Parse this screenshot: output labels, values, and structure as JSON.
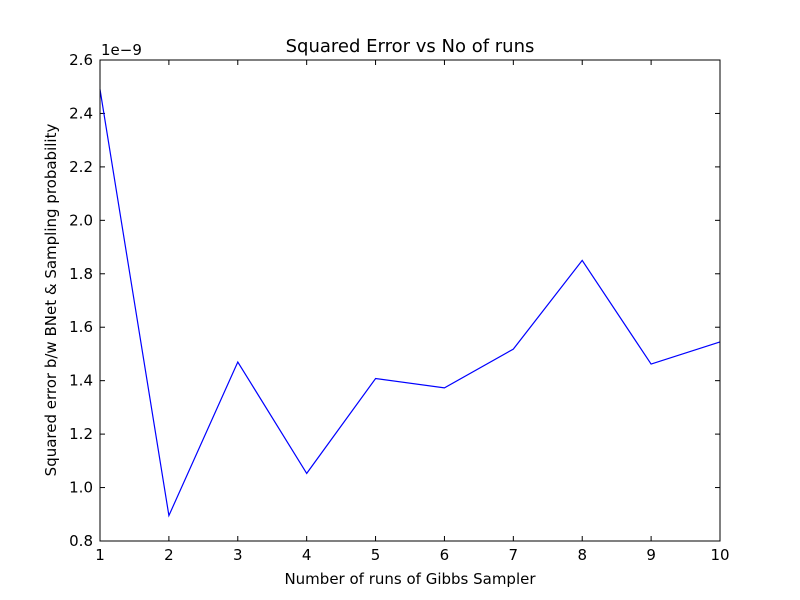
{
  "chart_data": {
    "type": "line",
    "title": "Squared Error vs No of runs",
    "xlabel": "Number of runs of Gibbs Sampler",
    "ylabel": "Squared error b/w BNet & Sampling probability",
    "y_offset_label": "1e−9",
    "xlim": [
      1,
      10
    ],
    "ylim": [
      0.8,
      2.6
    ],
    "x_ticks": [
      "1",
      "2",
      "3",
      "4",
      "5",
      "6",
      "7",
      "8",
      "9",
      "10"
    ],
    "y_ticks": [
      "0.8",
      "1.0",
      "1.2",
      "1.4",
      "1.6",
      "1.8",
      "2.0",
      "2.2",
      "2.4",
      "2.6"
    ],
    "grid": false,
    "series": [
      {
        "color": "#0000ff",
        "x": [
          1,
          2,
          3,
          4,
          5,
          6,
          7,
          8,
          9,
          10
        ],
        "y": [
          2.49,
          0.895,
          1.47,
          1.053,
          1.408,
          1.373,
          1.518,
          1.85,
          1.462,
          1.545
        ]
      }
    ]
  }
}
